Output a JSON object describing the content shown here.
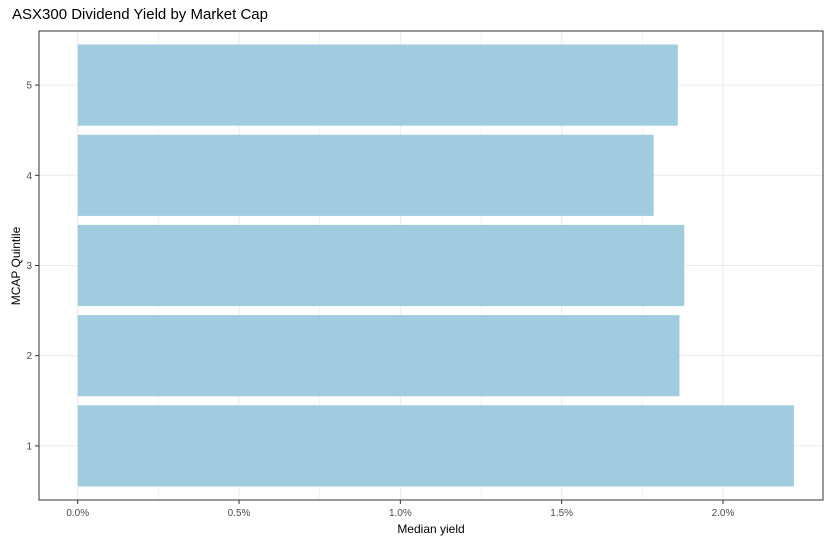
{
  "chart_data": {
    "type": "bar",
    "orientation": "horizontal",
    "title": "ASX300 Dividend Yield by Market Cap",
    "xlabel": "Median yield",
    "ylabel": "MCAP Quintile",
    "categories": [
      "1",
      "2",
      "3",
      "4",
      "5"
    ],
    "values": [
      2.22,
      1.865,
      1.88,
      1.785,
      1.86
    ],
    "value_unit": "%",
    "xlim": [
      -0.12,
      2.31
    ],
    "xticks": [
      0.0,
      0.5,
      1.0,
      1.5,
      2.0
    ],
    "xtick_labels": [
      "0.0%",
      "0.5%",
      "1.0%",
      "1.5%",
      "2.0%"
    ],
    "grid": true,
    "bar_color": "#a1cce0",
    "grid_color": "#ebebeb",
    "panel_border_color": "#333333"
  }
}
